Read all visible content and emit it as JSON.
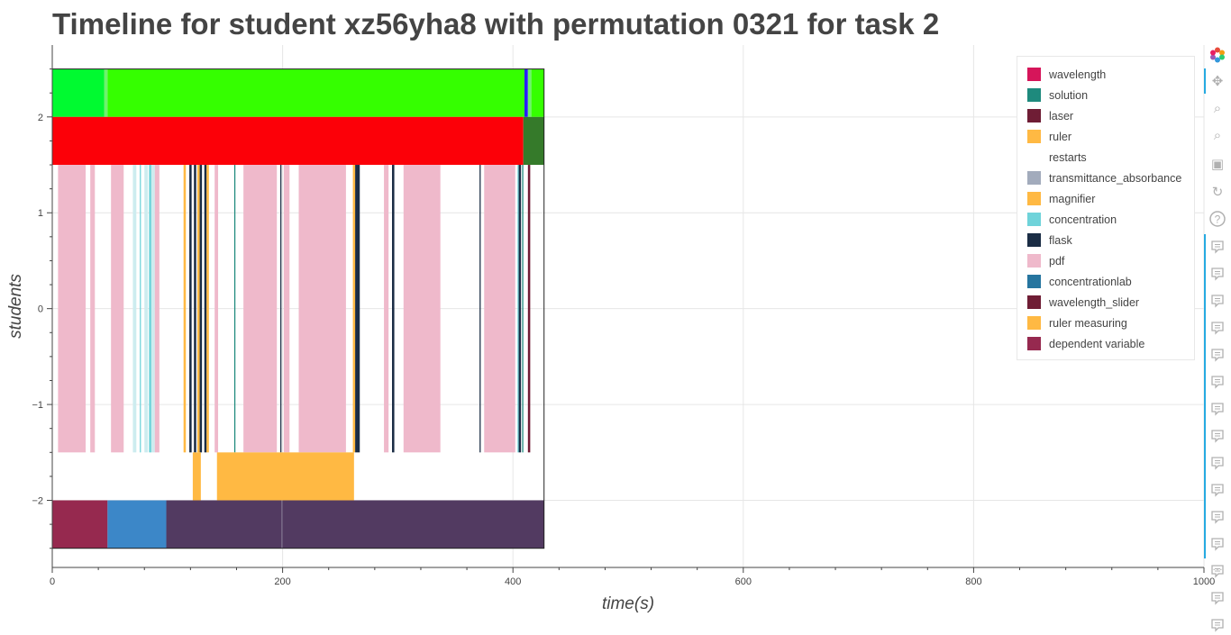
{
  "title": "Timeline for student xz56yha8 with permutation 0321 for task 2",
  "colors": {
    "wavelength": "#d6155a",
    "solution": "#1e8a7d",
    "laser": "#6f1d35",
    "ruler": "#ffb943",
    "restarts": "#ffffff",
    "transmittance_absorbance": "#a2abbc",
    "magnifier": "#ffb943",
    "concentration": "#6fd3da",
    "flask": "#1b2d45",
    "pdf": "#efb9cb",
    "concentrationlab": "#26759f",
    "wavelength_slider": "#6f1d35",
    "ruler measuring": "#ffb943",
    "dependent variable": "#96294f"
  },
  "chart_data": {
    "type": "bar",
    "orientation": "horizontal-timeline",
    "xlabel": "time(s)",
    "ylabel": "students",
    "xlim": [
      0,
      1000
    ],
    "ylim": [
      -2.7,
      2.75
    ],
    "x_ticks": [
      0,
      200,
      400,
      600,
      800,
      1000
    ],
    "y_ticks": [
      -2,
      -1,
      0,
      1,
      2
    ],
    "y_tick_labels": [
      "−2",
      "−1",
      "0",
      "1",
      "2"
    ],
    "grid": true,
    "legend_position": "top-right",
    "legend": [
      "wavelength",
      "solution",
      "laser",
      "ruler",
      "restarts",
      "transmittance_absorbance",
      "magnifier",
      "concentration",
      "flask",
      "pdf",
      "concentrationlab",
      "wavelength_slider",
      "ruler measuring",
      "dependent variable"
    ],
    "bars": [
      {
        "row": "top",
        "y0": 2,
        "y1": 2.5,
        "x0": 0,
        "x1": 45,
        "color": "#00fa30"
      },
      {
        "row": "top",
        "y0": 2,
        "y1": 2.5,
        "x0": 45,
        "x1": 48,
        "color": "#6df36d"
      },
      {
        "row": "top",
        "y0": 2,
        "y1": 2.5,
        "x0": 48,
        "x1": 410,
        "color": "#35ff00"
      },
      {
        "row": "top",
        "y0": 2,
        "y1": 2.5,
        "x0": 410,
        "x1": 413,
        "color": "#2a1bff"
      },
      {
        "row": "top",
        "y0": 2,
        "y1": 2.5,
        "x0": 413,
        "x1": 416,
        "color": "#6df36d"
      },
      {
        "row": "top",
        "y0": 2,
        "y1": 2.5,
        "x0": 416,
        "x1": 427,
        "color": "#35ff00"
      },
      {
        "row": "second",
        "y0": 1.5,
        "y1": 2,
        "x0": 0,
        "x1": 409,
        "color": "#fc0008"
      },
      {
        "row": "second",
        "y0": 1.5,
        "y1": 2,
        "x0": 409,
        "x1": 427,
        "color": "#357a2a"
      },
      {
        "row": "middle",
        "y0": -1.5,
        "y1": 1.5,
        "x0": 5,
        "x1": 29,
        "color": "#efb9cb"
      },
      {
        "row": "middle",
        "y0": -1.5,
        "y1": 1.5,
        "x0": 33,
        "x1": 37,
        "color": "#efb9cb"
      },
      {
        "row": "middle",
        "y0": -1.5,
        "y1": 1.5,
        "x0": 51,
        "x1": 62,
        "color": "#efb9cb"
      },
      {
        "row": "middle",
        "y0": -1.5,
        "y1": 1.5,
        "x0": 70,
        "x1": 73,
        "color": "#cdecef"
      },
      {
        "row": "middle",
        "y0": -1.5,
        "y1": 1.5,
        "x0": 76,
        "x1": 77,
        "color": "#6fd3da"
      },
      {
        "row": "middle",
        "y0": -1.5,
        "y1": 1.5,
        "x0": 80,
        "x1": 83,
        "color": "#cdecef"
      },
      {
        "row": "middle",
        "y0": -1.5,
        "y1": 1.5,
        "x0": 84,
        "x1": 86,
        "color": "#6fd3da"
      },
      {
        "row": "middle",
        "y0": -1.5,
        "y1": 1.5,
        "x0": 86,
        "x1": 89,
        "color": "#cdecef"
      },
      {
        "row": "middle",
        "y0": -1.5,
        "y1": 1.5,
        "x0": 89,
        "x1": 93,
        "color": "#efb9cb"
      },
      {
        "row": "middle",
        "y0": -1.5,
        "y1": 1.5,
        "x0": 114,
        "x1": 116,
        "color": "#ffb943"
      },
      {
        "row": "middle",
        "y0": -1.5,
        "y1": 1.5,
        "x0": 119,
        "x1": 121,
        "color": "#1b2d45"
      },
      {
        "row": "middle",
        "y0": -1.5,
        "y1": 1.5,
        "x0": 123,
        "x1": 125,
        "color": "#1b2d45"
      },
      {
        "row": "middle",
        "y0": -1.5,
        "y1": 1.5,
        "x0": 126,
        "x1": 128,
        "color": "#ffb943"
      },
      {
        "row": "middle",
        "y0": -1.5,
        "y1": 1.5,
        "x0": 128,
        "x1": 130,
        "color": "#1b2d45"
      },
      {
        "row": "middle",
        "y0": -1.5,
        "y1": 1.5,
        "x0": 132,
        "x1": 134,
        "color": "#1b2d45"
      },
      {
        "row": "middle",
        "y0": -1.5,
        "y1": 1.5,
        "x0": 134,
        "x1": 136,
        "color": "#ffb943"
      },
      {
        "row": "middle",
        "y0": -1.5,
        "y1": 1.5,
        "x0": 141,
        "x1": 144,
        "color": "#efb9cb"
      },
      {
        "row": "middle",
        "y0": -1.5,
        "y1": 1.5,
        "x0": 158,
        "x1": 159,
        "color": "#1e8a7d"
      },
      {
        "row": "middle",
        "y0": -1.5,
        "y1": 1.5,
        "x0": 166,
        "x1": 195,
        "color": "#efb9cb"
      },
      {
        "row": "middle",
        "y0": -1.5,
        "y1": 1.5,
        "x0": 198,
        "x1": 199,
        "color": "#1b2d45"
      },
      {
        "row": "middle",
        "y0": -1.5,
        "y1": 1.5,
        "x0": 201,
        "x1": 206,
        "color": "#efb9cb"
      },
      {
        "row": "middle",
        "y0": -1.5,
        "y1": 1.5,
        "x0": 214,
        "x1": 255,
        "color": "#efb9cb"
      },
      {
        "row": "middle",
        "y0": -1.5,
        "y1": 1.5,
        "x0": 261,
        "x1": 263,
        "color": "#ffb943"
      },
      {
        "row": "middle",
        "y0": -1.5,
        "y1": 1.5,
        "x0": 263,
        "x1": 267,
        "color": "#1b2d45"
      },
      {
        "row": "middle",
        "y0": -1.5,
        "y1": 1.5,
        "x0": 288,
        "x1": 292,
        "color": "#efb9cb"
      },
      {
        "row": "middle",
        "y0": -1.5,
        "y1": 1.5,
        "x0": 295,
        "x1": 297,
        "color": "#1b2d45"
      },
      {
        "row": "middle",
        "y0": -1.5,
        "y1": 1.5,
        "x0": 305,
        "x1": 337,
        "color": "#efb9cb"
      },
      {
        "row": "middle",
        "y0": -1.5,
        "y1": 1.5,
        "x0": 371,
        "x1": 372,
        "color": "#1b2d45"
      },
      {
        "row": "middle",
        "y0": -1.5,
        "y1": 1.5,
        "x0": 375,
        "x1": 402,
        "color": "#efb9cb"
      },
      {
        "row": "middle",
        "y0": -1.5,
        "y1": 1.5,
        "x0": 404,
        "x1": 405,
        "color": "#6fd3da"
      },
      {
        "row": "middle",
        "y0": -1.5,
        "y1": 1.5,
        "x0": 405,
        "x1": 407,
        "color": "#1b2d45"
      },
      {
        "row": "middle",
        "y0": -1.5,
        "y1": 1.5,
        "x0": 408,
        "x1": 409,
        "color": "#1e8a7d"
      },
      {
        "row": "middle",
        "y0": -1.5,
        "y1": 1.5,
        "x0": 413,
        "x1": 415,
        "color": "#6f1d35"
      },
      {
        "row": "ruler",
        "y0": -2,
        "y1": -1.5,
        "x0": 122,
        "x1": 129,
        "color": "#ffb943"
      },
      {
        "row": "ruler",
        "y0": -2,
        "y1": -1.5,
        "x0": 143,
        "x1": 262,
        "color": "#ffb943"
      },
      {
        "row": "bottom",
        "y0": -2.5,
        "y1": -2,
        "x0": 0,
        "x1": 48,
        "color": "#96294f"
      },
      {
        "row": "bottom",
        "y0": -2.5,
        "y1": -2,
        "x0": 48,
        "x1": 99,
        "color": "#3c87c8"
      },
      {
        "row": "bottom",
        "y0": -2.5,
        "y1": -2,
        "x0": 99,
        "x1": 199,
        "color": "#523a61"
      },
      {
        "row": "bottom",
        "y0": -2.5,
        "y1": -2,
        "x0": 199,
        "x1": 200,
        "color": "#6a5a7b"
      },
      {
        "row": "bottom",
        "y0": -2.5,
        "y1": -2,
        "x0": 200,
        "x1": 427,
        "color": "#523a61"
      }
    ],
    "outline": {
      "x0": 0,
      "x1": 427,
      "y0": -2.5,
      "y1": 2.5
    }
  },
  "toolbar": {
    "tools": [
      "bokeh-logo-icon",
      "pan-icon",
      "box-zoom-icon",
      "wheel-zoom-icon",
      "save-icon",
      "reset-icon",
      "help-icon"
    ],
    "hover_tool_count": 15,
    "more": "…"
  }
}
